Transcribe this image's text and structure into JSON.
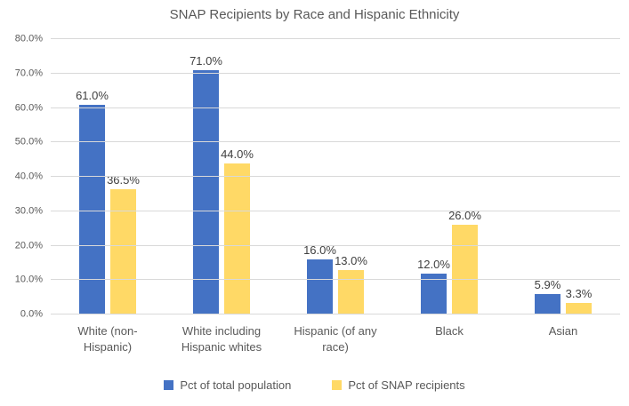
{
  "chart_data": {
    "type": "bar",
    "title": "SNAP Recipients by Race and Hispanic Ethnicity",
    "categories": [
      "White (non-Hispanic)",
      "White including Hispanic whites",
      "Hispanic (of any race)",
      "Black",
      "Asian"
    ],
    "series": [
      {
        "name": "Pct of total population",
        "color": "#4472C4",
        "values": [
          61.0,
          71.0,
          16.0,
          12.0,
          5.9
        ]
      },
      {
        "name": "Pct of SNAP recipients",
        "color": "#FFD966",
        "values": [
          36.5,
          44.0,
          13.0,
          26.0,
          3.3
        ]
      }
    ],
    "data_labels": [
      [
        "61.0%",
        "71.0%",
        "16.0%",
        "12.0%",
        "5.9%"
      ],
      [
        "36.5%",
        "44.0%",
        "13.0%",
        "26.0%",
        "3.3%"
      ]
    ],
    "ylim": [
      0,
      80
    ],
    "ytick_step": 10,
    "ytick_labels": [
      "0.0%",
      "10.0%",
      "20.0%",
      "30.0%",
      "40.0%",
      "50.0%",
      "60.0%",
      "70.0%",
      "80.0%"
    ],
    "grid": true,
    "legend_position": "bottom",
    "colors": {
      "gridline": "#d9d9d9",
      "axis_text": "#595959",
      "data_label_text": "#404040",
      "title_text": "#595959"
    }
  }
}
